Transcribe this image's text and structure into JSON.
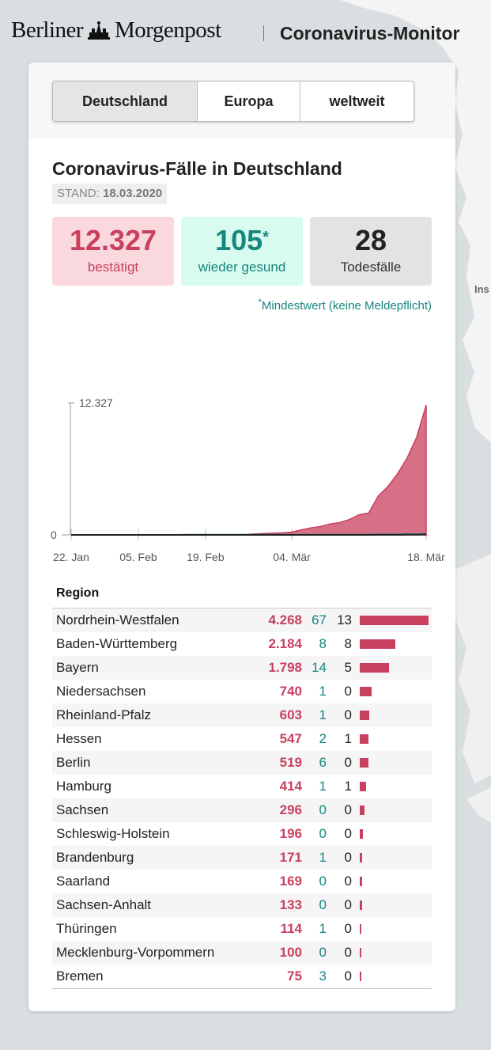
{
  "header": {
    "logo_left": "Berliner",
    "logo_right": "Morgenpost",
    "title": "Coronavirus-Monitor"
  },
  "map": {
    "label": "Ins"
  },
  "tabs": [
    {
      "label": "Deutschland",
      "active": true
    },
    {
      "label": "Europa",
      "active": false
    },
    {
      "label": "weltweit",
      "active": false
    }
  ],
  "main": {
    "title": "Coronavirus-Fälle in Deutschland",
    "stand_label": "STAND:",
    "stand_date": "18.03.2020"
  },
  "stats": {
    "confirmed": {
      "value": "12.327",
      "label": "bestätigt"
    },
    "recovered": {
      "value": "105",
      "marker": "*",
      "label": "wieder gesund"
    },
    "deaths": {
      "value": "28",
      "label": "Todesfälle"
    }
  },
  "footnote": {
    "marker": "*",
    "text": "Mindestwert (keine Meldepflicht)"
  },
  "chart_data": {
    "type": "area",
    "y_ticks": [
      "12.327",
      "0"
    ],
    "ylim": [
      0,
      12327
    ],
    "x_labels": [
      "22. Jan",
      "05. Feb",
      "19. Feb",
      "04. Mär",
      "18. Mär"
    ],
    "dates": [
      "22. Jan",
      "24. Jan",
      "26. Jan",
      "28. Jan",
      "30. Jan",
      "01. Feb",
      "03. Feb",
      "05. Feb",
      "07. Feb",
      "09. Feb",
      "11. Feb",
      "13. Feb",
      "15. Feb",
      "17. Feb",
      "19. Feb",
      "21. Feb",
      "23. Feb",
      "25. Feb",
      "27. Feb",
      "29. Feb",
      "01. Mär",
      "02. Mär",
      "03. Mär",
      "04. Mär",
      "05. Mär",
      "06. Mär",
      "07. Mär",
      "08. Mär",
      "09. Mär",
      "10. Mär",
      "11. Mär",
      "12. Mär",
      "13. Mär",
      "14. Mär",
      "15. Mär",
      "16. Mär",
      "17. Mär",
      "18. Mär"
    ],
    "series": [
      {
        "name": "bestätigt",
        "color": "#c9405f",
        "values": [
          0,
          0,
          0,
          4,
          5,
          8,
          12,
          12,
          14,
          16,
          16,
          16,
          16,
          16,
          16,
          16,
          16,
          18,
          26,
          79,
          130,
          159,
          196,
          262,
          482,
          670,
          799,
          1040,
          1176,
          1457,
          1908,
          2078,
          3675,
          4585,
          5795,
          7272,
          9257,
          12327
        ]
      },
      {
        "name": "wieder gesund",
        "color": "#17867d",
        "values": [
          0,
          0,
          0,
          0,
          0,
          0,
          0,
          0,
          0,
          0,
          0,
          0,
          14,
          14,
          14,
          14,
          14,
          14,
          14,
          16,
          16,
          16,
          16,
          16,
          16,
          16,
          18,
          18,
          18,
          25,
          25,
          25,
          46,
          46,
          46,
          67,
          67,
          105
        ]
      },
      {
        "name": "Todesfälle",
        "color": "#222222",
        "values": [
          0,
          0,
          0,
          0,
          0,
          0,
          0,
          0,
          0,
          0,
          0,
          0,
          0,
          0,
          0,
          0,
          0,
          0,
          0,
          0,
          0,
          0,
          0,
          0,
          0,
          0,
          0,
          0,
          2,
          2,
          3,
          3,
          7,
          9,
          11,
          17,
          24,
          28
        ]
      }
    ]
  },
  "table": {
    "header": "Region",
    "max_value": 4268,
    "rows": [
      {
        "region": "Nordrhein-Westfalen",
        "confirmed": "4.268",
        "recovered": "67",
        "deaths": "13",
        "value": 4268
      },
      {
        "region": "Baden-Württemberg",
        "confirmed": "2.184",
        "recovered": "8",
        "deaths": "8",
        "value": 2184
      },
      {
        "region": "Bayern",
        "confirmed": "1.798",
        "recovered": "14",
        "deaths": "5",
        "value": 1798
      },
      {
        "region": "Niedersachsen",
        "confirmed": "740",
        "recovered": "1",
        "deaths": "0",
        "value": 740
      },
      {
        "region": "Rheinland-Pfalz",
        "confirmed": "603",
        "recovered": "1",
        "deaths": "0",
        "value": 603
      },
      {
        "region": "Hessen",
        "confirmed": "547",
        "recovered": "2",
        "deaths": "1",
        "value": 547
      },
      {
        "region": "Berlin",
        "confirmed": "519",
        "recovered": "6",
        "deaths": "0",
        "value": 519
      },
      {
        "region": "Hamburg",
        "confirmed": "414",
        "recovered": "1",
        "deaths": "1",
        "value": 414
      },
      {
        "region": "Sachsen",
        "confirmed": "296",
        "recovered": "0",
        "deaths": "0",
        "value": 296
      },
      {
        "region": "Schleswig-Holstein",
        "confirmed": "196",
        "recovered": "0",
        "deaths": "0",
        "value": 196
      },
      {
        "region": "Brandenburg",
        "confirmed": "171",
        "recovered": "1",
        "deaths": "0",
        "value": 171
      },
      {
        "region": "Saarland",
        "confirmed": "169",
        "recovered": "0",
        "deaths": "0",
        "value": 169
      },
      {
        "region": "Sachsen-Anhalt",
        "confirmed": "133",
        "recovered": "0",
        "deaths": "0",
        "value": 133
      },
      {
        "region": "Thüringen",
        "confirmed": "114",
        "recovered": "1",
        "deaths": "0",
        "value": 114
      },
      {
        "region": "Mecklenburg-Vorpommern",
        "confirmed": "100",
        "recovered": "0",
        "deaths": "0",
        "value": 100
      },
      {
        "region": "Bremen",
        "confirmed": "75",
        "recovered": "3",
        "deaths": "0",
        "value": 75
      }
    ]
  },
  "colors": {
    "confirmed": "#c9405f",
    "recovered": "#17867d",
    "deaths": "#222222"
  }
}
